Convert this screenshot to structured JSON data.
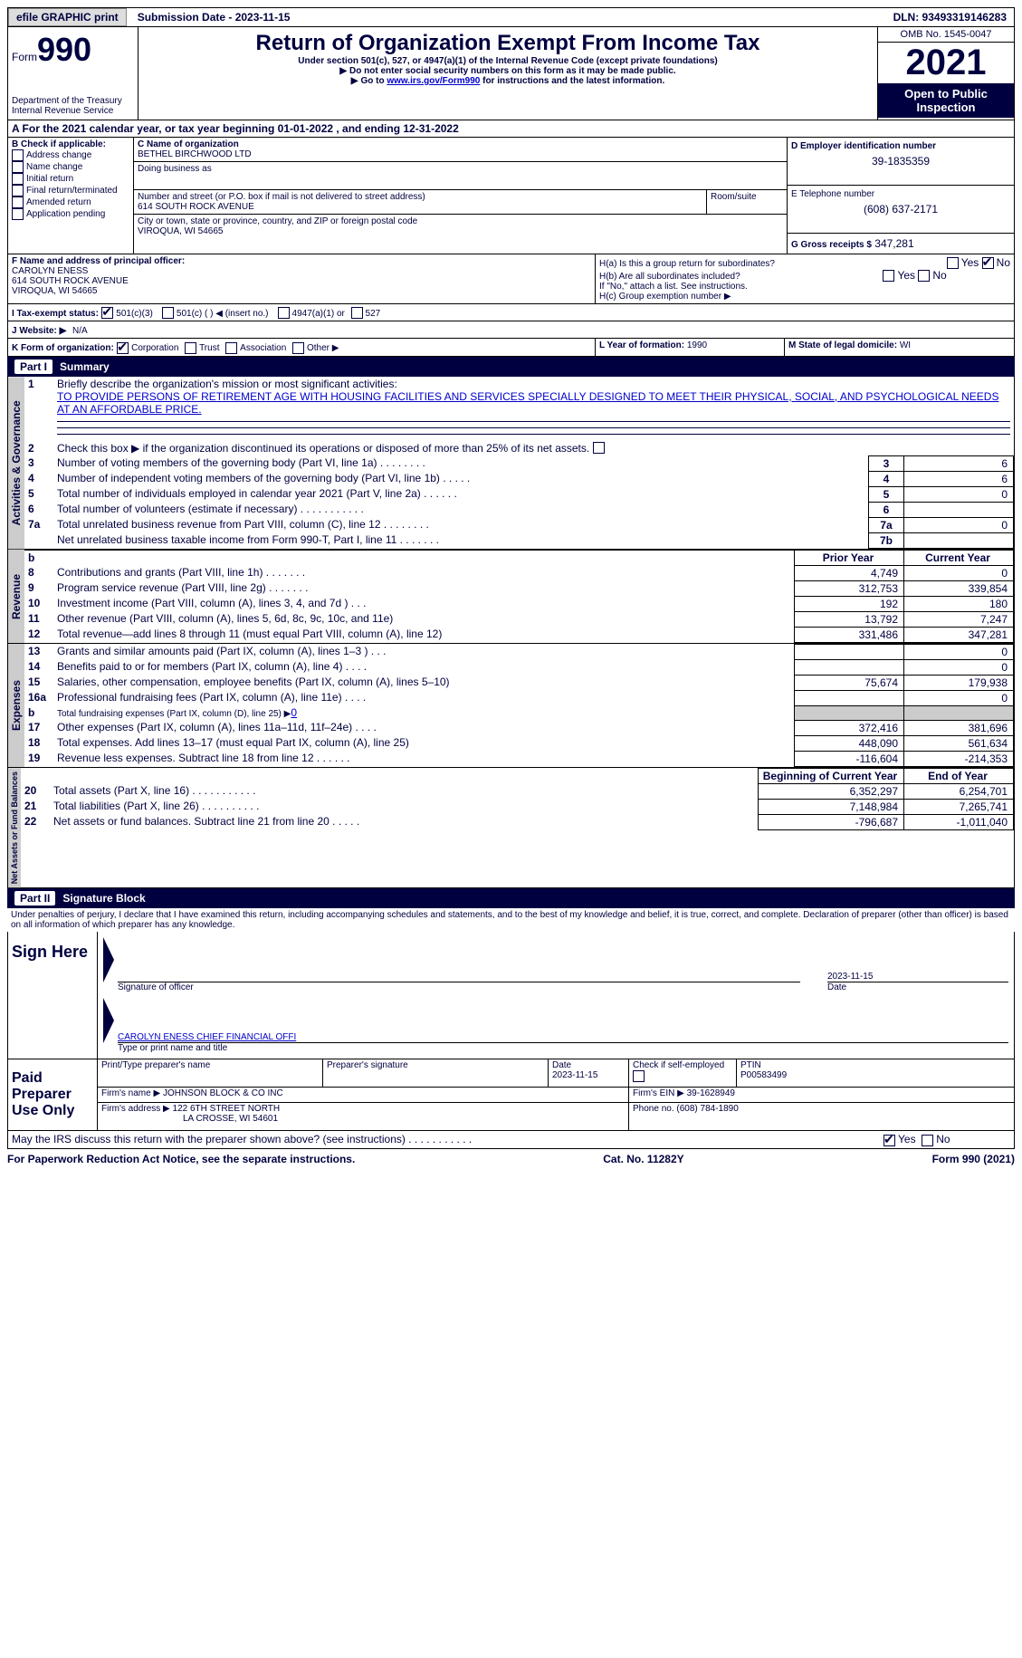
{
  "topbar": {
    "efile": "efile GRAPHIC print",
    "submission": "Submission Date - 2023-11-15",
    "dln": "DLN: 93493319146283"
  },
  "header": {
    "form_label": "Form",
    "form_num": "990",
    "dept": "Department of the Treasury",
    "irs": "Internal Revenue Service",
    "title": "Return of Organization Exempt From Income Tax",
    "subtitle": "Under section 501(c), 527, or 4947(a)(1) of the Internal Revenue Code (except private foundations)",
    "note1": "Do not enter social security numbers on this form as it may be made public.",
    "note2_pre": "Go to ",
    "note2_link": "www.irs.gov/Form990",
    "note2_post": " for instructions and the latest information.",
    "omb": "OMB No. 1545-0047",
    "year": "2021",
    "inspection": "Open to Public Inspection"
  },
  "lineA": "A For the 2021 calendar year, or tax year beginning 01-01-2022    , and ending 12-31-2022",
  "boxB": {
    "label": "B Check if applicable:",
    "opts": [
      "Address change",
      "Name change",
      "Initial return",
      "Final return/terminated",
      "Amended return",
      "Application pending"
    ]
  },
  "boxC": {
    "label": "C Name of organization",
    "name": "BETHEL BIRCHWOOD LTD",
    "dba": "Doing business as",
    "addr_label": "Number and street (or P.O. box if mail is not delivered to street address)",
    "addr": "614 SOUTH ROCK AVENUE",
    "room": "Room/suite",
    "city_label": "City or town, state or province, country, and ZIP or foreign postal code",
    "city": "VIROQUA, WI  54665"
  },
  "boxD": {
    "label": "D Employer identification number",
    "val": "39-1835359"
  },
  "boxE": {
    "label": "E Telephone number",
    "val": "(608) 637-2171"
  },
  "boxG": {
    "label": "G Gross receipts $",
    "val": "347,281"
  },
  "boxF": {
    "label": "F  Name and address of principal officer:",
    "name": "CAROLYN ENESS",
    "addr": "614 SOUTH ROCK AVENUE",
    "city": "VIROQUA, WI  54665"
  },
  "boxH": {
    "ha": "H(a)  Is this a group return for subordinates?",
    "hb": "H(b)  Are all subordinates included?",
    "hb_note": "If \"No,\" attach a list. See instructions.",
    "hc": "H(c)  Group exemption number ▶",
    "yes": "Yes",
    "no": "No"
  },
  "boxI": {
    "label": "I    Tax-exempt status:",
    "o1": "501(c)(3)",
    "o2": "501(c) (   ) ◀ (insert no.)",
    "o3": "4947(a)(1) or",
    "o4": "527"
  },
  "boxJ": {
    "label": "J   Website: ▶",
    "val": "N/A"
  },
  "boxK": {
    "label": "K Form of organization:",
    "opts": [
      "Corporation",
      "Trust",
      "Association",
      "Other ▶"
    ]
  },
  "boxL": {
    "label": "L Year of formation:",
    "val": "1990"
  },
  "boxM": {
    "label": "M State of legal domicile:",
    "val": "WI"
  },
  "part1": {
    "num": "Part I",
    "title": "Summary"
  },
  "mission": {
    "label": "Briefly describe the organization's mission or most significant activities:",
    "text": "TO PROVIDE PERSONS OF RETIREMENT AGE WITH HOUSING FACILITIES AND SERVICES SPECIALLY DESIGNED TO MEET THEIR PHYSICAL, SOCIAL, AND PSYCHOLOGICAL NEEDS AT AN AFFORDABLE PRICE."
  },
  "line2": "Check this box ▶        if the organization discontinued its operations or disposed of more than 25% of its net assets.",
  "lines_gov": [
    {
      "n": "3",
      "t": "Number of voting members of the governing body (Part VI, line 1a)   .    .    .    .    .    .    .    .",
      "box": "3",
      "v": "6"
    },
    {
      "n": "4",
      "t": "Number of independent voting members of the governing body (Part VI, line 1b)   .    .    .    .    .",
      "box": "4",
      "v": "6"
    },
    {
      "n": "5",
      "t": "Total number of individuals employed in calendar year 2021 (Part V, line 2a)   .    .    .    .    .    .",
      "box": "5",
      "v": "0"
    },
    {
      "n": "6",
      "t": "Total number of volunteers (estimate if necessary)    .    .    .    .    .    .    .    .    .    .    .",
      "box": "6",
      "v": ""
    },
    {
      "n": "7a",
      "t": "Total unrelated business revenue from Part VIII, column (C), line 12   .    .    .    .    .    .    .    .",
      "box": "7a",
      "v": "0"
    },
    {
      "n": "",
      "t": "Net unrelated business taxable income from Form 990-T, Part I, line 11   .    .    .    .    .    .    .",
      "box": "7b",
      "v": ""
    }
  ],
  "col_hdr": {
    "py": "Prior Year",
    "cy": "Current Year"
  },
  "lines_rev": [
    {
      "n": "8",
      "t": "Contributions and grants (Part VIII, line 1h)   .    .    .    .    .    .    .",
      "py": "4,749",
      "cy": "0"
    },
    {
      "n": "9",
      "t": "Program service revenue (Part VIII, line 2g)   .    .    .    .    .    .    .",
      "py": "312,753",
      "cy": "339,854"
    },
    {
      "n": "10",
      "t": "Investment income (Part VIII, column (A), lines 3, 4, and 7d )   .    .    .",
      "py": "192",
      "cy": "180"
    },
    {
      "n": "11",
      "t": "Other revenue (Part VIII, column (A), lines 5, 6d, 8c, 9c, 10c, and 11e)",
      "py": "13,792",
      "cy": "7,247"
    },
    {
      "n": "12",
      "t": "Total revenue—add lines 8 through 11 (must equal Part VIII, column (A), line 12)",
      "py": "331,486",
      "cy": "347,281"
    }
  ],
  "lines_exp": [
    {
      "n": "13",
      "t": "Grants and similar amounts paid (Part IX, column (A), lines 1–3 )   .    .    .",
      "py": "",
      "cy": "0"
    },
    {
      "n": "14",
      "t": "Benefits paid to or for members (Part IX, column (A), line 4)   .    .    .    .",
      "py": "",
      "cy": "0"
    },
    {
      "n": "15",
      "t": "Salaries, other compensation, employee benefits (Part IX, column (A), lines 5–10)",
      "py": "75,674",
      "cy": "179,938"
    },
    {
      "n": "16a",
      "t": "Professional fundraising fees (Part IX, column (A), line 11e)   .    .    .    .",
      "py": "",
      "cy": "0"
    },
    {
      "n": "b",
      "t": "Total fundraising expenses (Part IX, column (D), line 25) ▶",
      "py": "grey",
      "cy": "grey",
      "link": "0"
    },
    {
      "n": "17",
      "t": "Other expenses (Part IX, column (A), lines 11a–11d, 11f–24e)   .    .    .    .",
      "py": "372,416",
      "cy": "381,696"
    },
    {
      "n": "18",
      "t": "Total expenses. Add lines 13–17 (must equal Part IX, column (A), line 25)",
      "py": "448,090",
      "cy": "561,634"
    },
    {
      "n": "19",
      "t": "Revenue less expenses. Subtract line 18 from line 12   .    .    .    .    .    .",
      "py": "-116,604",
      "cy": "-214,353"
    }
  ],
  "col_hdr2": {
    "py": "Beginning of Current Year",
    "cy": "End of Year"
  },
  "lines_net": [
    {
      "n": "20",
      "t": "Total assets (Part X, line 16)   .    .    .    .    .    .    .    .    .    .    .",
      "py": "6,352,297",
      "cy": "6,254,701"
    },
    {
      "n": "21",
      "t": "Total liabilities (Part X, line 26)   .    .    .    .    .    .    .    .    .    .",
      "py": "7,148,984",
      "cy": "7,265,741"
    },
    {
      "n": "22",
      "t": "Net assets or fund balances. Subtract line 21 from line 20   .    .    .    .    .",
      "py": "-796,687",
      "cy": "-1,011,040"
    }
  ],
  "vlabels": {
    "gov": "Activities & Governance",
    "rev": "Revenue",
    "exp": "Expenses",
    "net": "Net Assets or Fund Balances"
  },
  "part2": {
    "num": "Part II",
    "title": "Signature Block"
  },
  "declaration": "Under penalties of perjury, I declare that I have examined this return, including accompanying schedules and statements, and to the best of my knowledge and belief, it is true, correct, and complete. Declaration of preparer (other than officer) is based on all information of which preparer has any knowledge.",
  "sign": {
    "here": "Sign Here",
    "sig_officer": "Signature of officer",
    "date": "Date",
    "date_val": "2023-11-15",
    "name_title": "Type or print name and title",
    "name_val": "CAROLYN ENESS  CHIEF FINANCIAL OFFI"
  },
  "paid": {
    "label": "Paid Preparer Use Only",
    "prep_name_lbl": "Print/Type preparer's name",
    "prep_sig_lbl": "Preparer's signature",
    "date_lbl": "Date",
    "date_val": "2023-11-15",
    "check_lbl": "Check          if self-employed",
    "ptin_lbl": "PTIN",
    "ptin_val": "P00583499",
    "firm_name_lbl": "Firm's name     ▶",
    "firm_name": "JOHNSON BLOCK & CO INC",
    "firm_ein_lbl": "Firm's EIN ▶",
    "firm_ein": "39-1628949",
    "firm_addr_lbl": "Firm's address ▶",
    "firm_addr1": "122 6TH STREET NORTH",
    "firm_addr2": "LA CROSSE, WI  54601",
    "phone_lbl": "Phone no.",
    "phone": "(608) 784-1890"
  },
  "discuss": "May the IRS discuss this return with the preparer shown above? (see instructions)    .    .    .    .    .    .    .    .    .    .    .",
  "footer": {
    "left": "For Paperwork Reduction Act Notice, see the separate instructions.",
    "mid": "Cat. No. 11282Y",
    "right": "Form 990 (2021)"
  }
}
